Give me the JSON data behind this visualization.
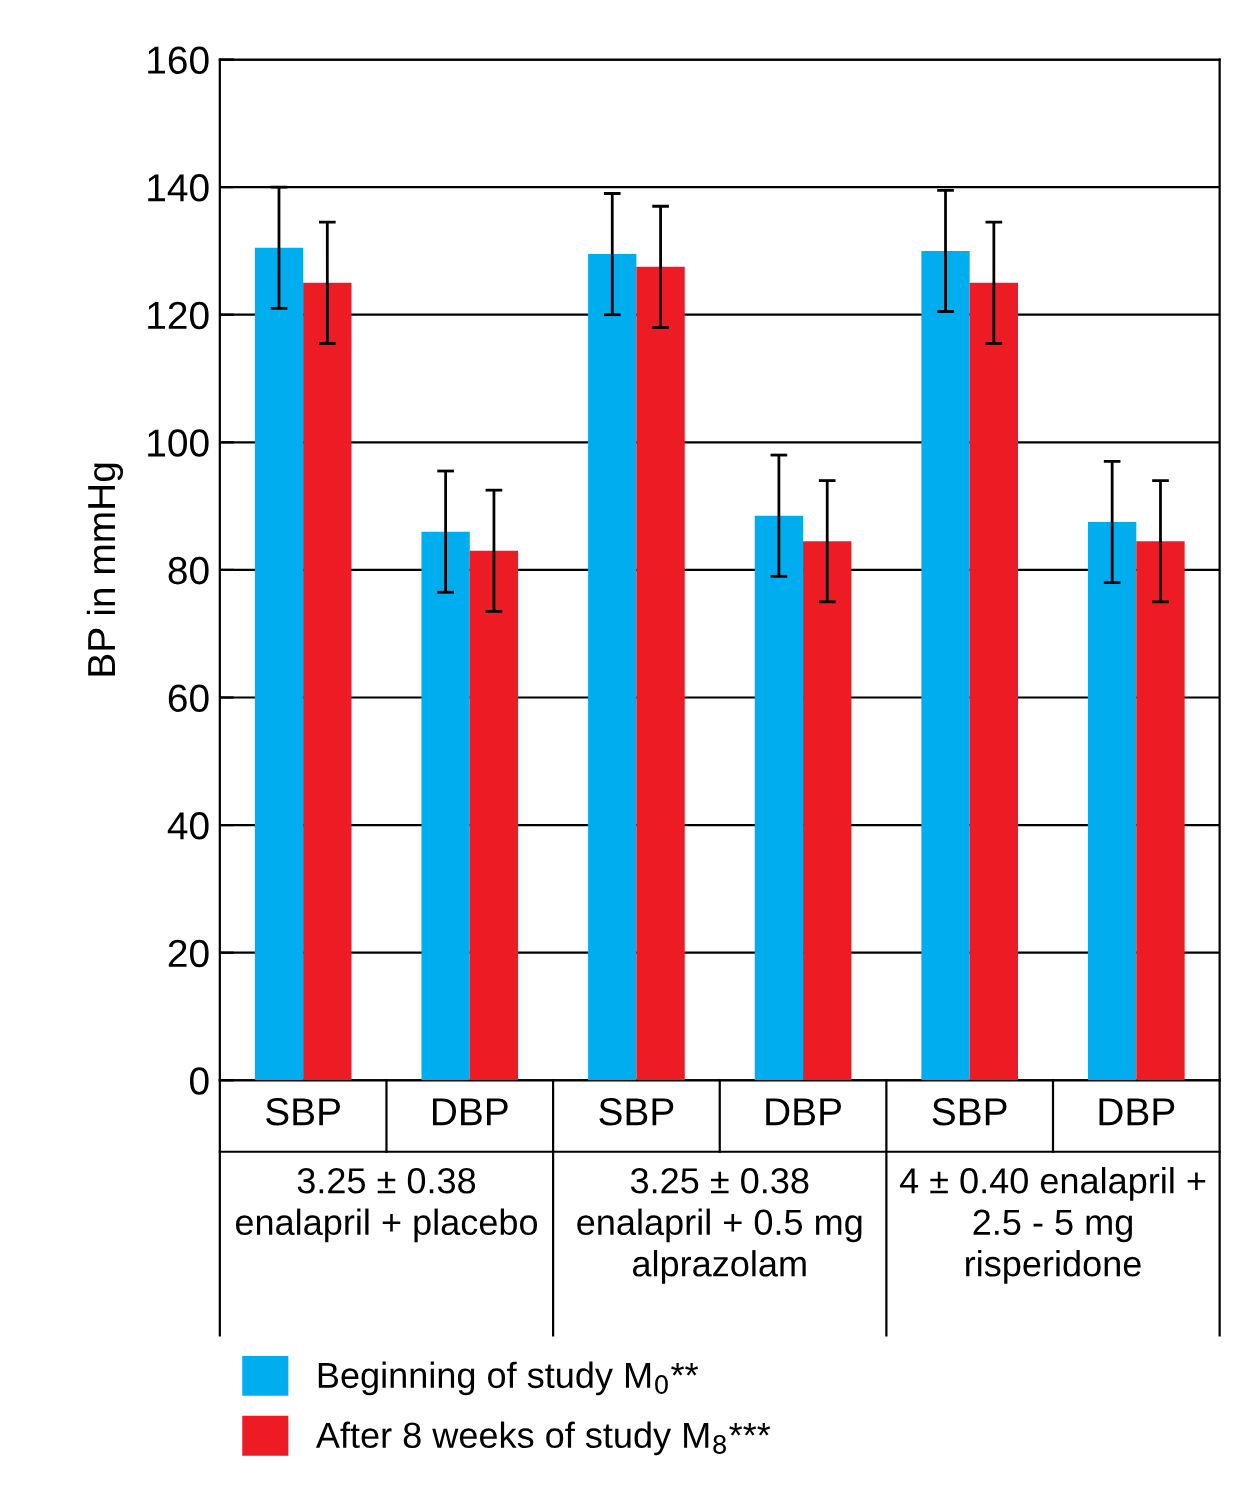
{
  "chart_data": {
    "type": "bar",
    "ylabel": "BP in mmHg",
    "categories": [
      "SBP",
      "DBP",
      "SBP",
      "DBP",
      "SBP",
      "DBP"
    ],
    "series": [
      {
        "name": "Beginning of study M$_{0}$**",
        "color": "#00aeef",
        "values": [
          130.5,
          86,
          129.5,
          88.5,
          130,
          87.5
        ],
        "errors": [
          9.5,
          9.5,
          9.5,
          9.5,
          9.5,
          9.5
        ]
      },
      {
        "name": "After 8 weeks of study M$_{8}$***",
        "color": "#ed1c24",
        "values": [
          125,
          83,
          127.5,
          84.5,
          125,
          84.5
        ],
        "errors": [
          9.5,
          9.5,
          9.5,
          9.5,
          9.5,
          9.5
        ]
      }
    ],
    "annotations": [
      "3.25 ± 0.38\nenalapril + placebo",
      "3.25 ± 0.38\nenalapril + 0.5 mg\nalprazolam",
      "4 ± 0.40 enalapril +\n2.5 - 5 mg\nrisperidone"
    ],
    "ylim": [
      0,
      160
    ],
    "yticks": [
      0,
      20,
      40,
      60,
      80,
      100,
      120,
      140,
      160
    ],
    "grid": "y",
    "legend": "bottom left"
  }
}
